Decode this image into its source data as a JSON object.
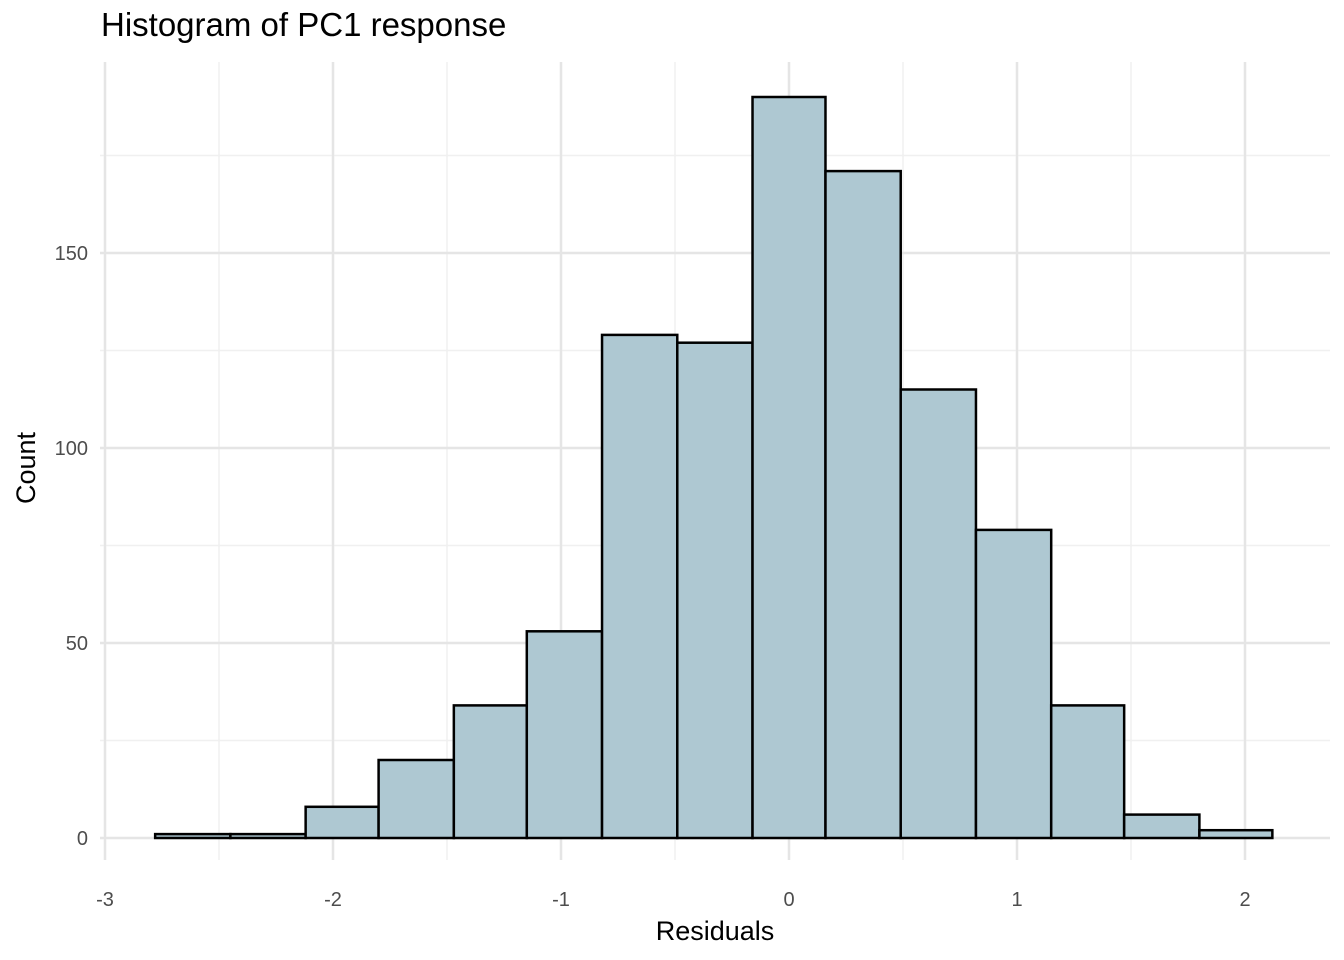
{
  "chart_data": {
    "type": "bar",
    "title": "Histogram of PC1 response",
    "xlabel": "Residuals",
    "ylabel": "Count",
    "xlim": [
      -3,
      2.2
    ],
    "ylim": [
      0,
      190
    ],
    "x_ticks": [
      -3,
      -2,
      -1,
      0,
      1,
      2
    ],
    "x_tick_labels": [
      "-3",
      "-2",
      "-1",
      "0",
      "1",
      "2"
    ],
    "y_ticks": [
      0,
      50,
      100,
      150
    ],
    "y_tick_labels": [
      "0",
      "50",
      "100",
      "150"
    ],
    "bin_width": 0.327,
    "bins": [
      {
        "x0": -2.78,
        "x1": -2.45,
        "count": 1
      },
      {
        "x0": -2.45,
        "x1": -2.12,
        "count": 1
      },
      {
        "x0": -2.12,
        "x1": -1.8,
        "count": 8
      },
      {
        "x0": -1.8,
        "x1": -1.47,
        "count": 20
      },
      {
        "x0": -1.47,
        "x1": -1.15,
        "count": 34
      },
      {
        "x0": -1.15,
        "x1": -0.82,
        "count": 53
      },
      {
        "x0": -0.82,
        "x1": -0.49,
        "count": 129
      },
      {
        "x0": -0.49,
        "x1": -0.16,
        "count": 127
      },
      {
        "x0": -0.16,
        "x1": 0.16,
        "count": 190
      },
      {
        "x0": 0.16,
        "x1": 0.49,
        "count": 171
      },
      {
        "x0": 0.49,
        "x1": 0.82,
        "count": 115
      },
      {
        "x0": 0.82,
        "x1": 1.15,
        "count": 79
      },
      {
        "x0": 1.15,
        "x1": 1.47,
        "count": 34
      },
      {
        "x0": 1.47,
        "x1": 1.8,
        "count": 6
      },
      {
        "x0": 1.8,
        "x1": 2.12,
        "count": 2
      }
    ],
    "grid": true,
    "legend": "none",
    "colors": {
      "bar_fill": "#aec8d2",
      "bar_stroke": "#000000",
      "grid_major": "#e5e5e5",
      "grid_minor": "#f0f0f0",
      "tick_text": "#4d4d4d"
    }
  }
}
